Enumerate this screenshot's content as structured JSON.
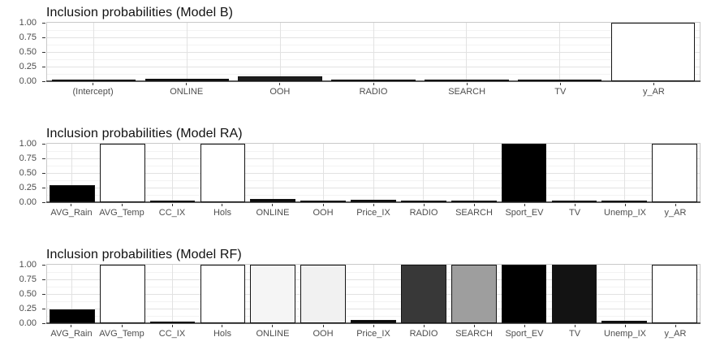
{
  "style": {
    "background": "#ffffff",
    "title_color": "#111111",
    "axis_text_color": "#4d4d4d",
    "tick_color": "#333333",
    "panel_border": "#c9c9c9",
    "grid_major": "#e2e2e2",
    "grid_minor": "#f3f3f3",
    "axis_line": "#5a5a5a",
    "bar_border": "#141414"
  },
  "y_axis": {
    "tick_values": [
      1.0,
      0.75,
      0.5,
      0.25,
      0.0
    ],
    "tick_labels": [
      "1.00",
      "0.75",
      "0.50",
      "0.25",
      "0.00"
    ]
  },
  "chart_data": [
    {
      "type": "bar",
      "title": "Inclusion probabilities (Model B)",
      "xlabel": "",
      "ylabel": "",
      "ylim": [
        0,
        1
      ],
      "grid": true,
      "legend": false,
      "categories": [
        "(Intercept)",
        "ONLINE",
        "OOH",
        "RADIO",
        "SEARCH",
        "TV",
        "y_AR"
      ],
      "values": [
        0.02,
        0.04,
        0.09,
        0.03,
        0.02,
        0.03,
        1.0
      ],
      "bar_fills": [
        "#0a0a0a",
        "#0a0a0a",
        "#1c1c1c",
        "#0a0a0a",
        "#0a0a0a",
        "#0a0a0a",
        "#ffffff"
      ]
    },
    {
      "type": "bar",
      "title": "Inclusion probabilities (Model RA)",
      "xlabel": "",
      "ylabel": "",
      "ylim": [
        0,
        1
      ],
      "grid": true,
      "legend": false,
      "categories": [
        "AVG_Rain",
        "AVG_Temp",
        "CC_IX",
        "Hols",
        "ONLINE",
        "OOH",
        "Price_IX",
        "RADIO",
        "SEARCH",
        "Sport_EV",
        "TV",
        "Unemp_IX",
        "y_AR"
      ],
      "values": [
        0.29,
        1.0,
        0.02,
        1.0,
        0.05,
        0.03,
        0.04,
        0.03,
        0.03,
        1.0,
        0.03,
        0.03,
        1.0
      ],
      "bar_fills": [
        "#000000",
        "#ffffff",
        "#0a0a0a",
        "#ffffff",
        "#0a0a0a",
        "#0a0a0a",
        "#0a0a0a",
        "#0a0a0a",
        "#0a0a0a",
        "#000000",
        "#0a0a0a",
        "#0a0a0a",
        "#ffffff"
      ]
    },
    {
      "type": "bar",
      "title": "Inclusion probabilities (Model RF)",
      "xlabel": "",
      "ylabel": "",
      "ylim": [
        0,
        1
      ],
      "grid": true,
      "legend": false,
      "categories": [
        "AVG_Rain",
        "AVG_Temp",
        "CC_IX",
        "Hols",
        "ONLINE",
        "OOH",
        "Price_IX",
        "RADIO",
        "SEARCH",
        "Sport_EV",
        "TV",
        "Unemp_IX",
        "y_AR"
      ],
      "values": [
        0.23,
        1.0,
        0.03,
        1.0,
        1.0,
        1.0,
        0.06,
        1.0,
        1.0,
        1.0,
        1.0,
        0.04,
        1.0
      ],
      "bar_fills": [
        "#000000",
        "#ffffff",
        "#0a0a0a",
        "#ffffff",
        "#f5f5f5",
        "#f1f1f1",
        "#0a0a0a",
        "#383838",
        "#9e9e9e",
        "#000000",
        "#131313",
        "#0a0a0a",
        "#ffffff"
      ]
    }
  ]
}
